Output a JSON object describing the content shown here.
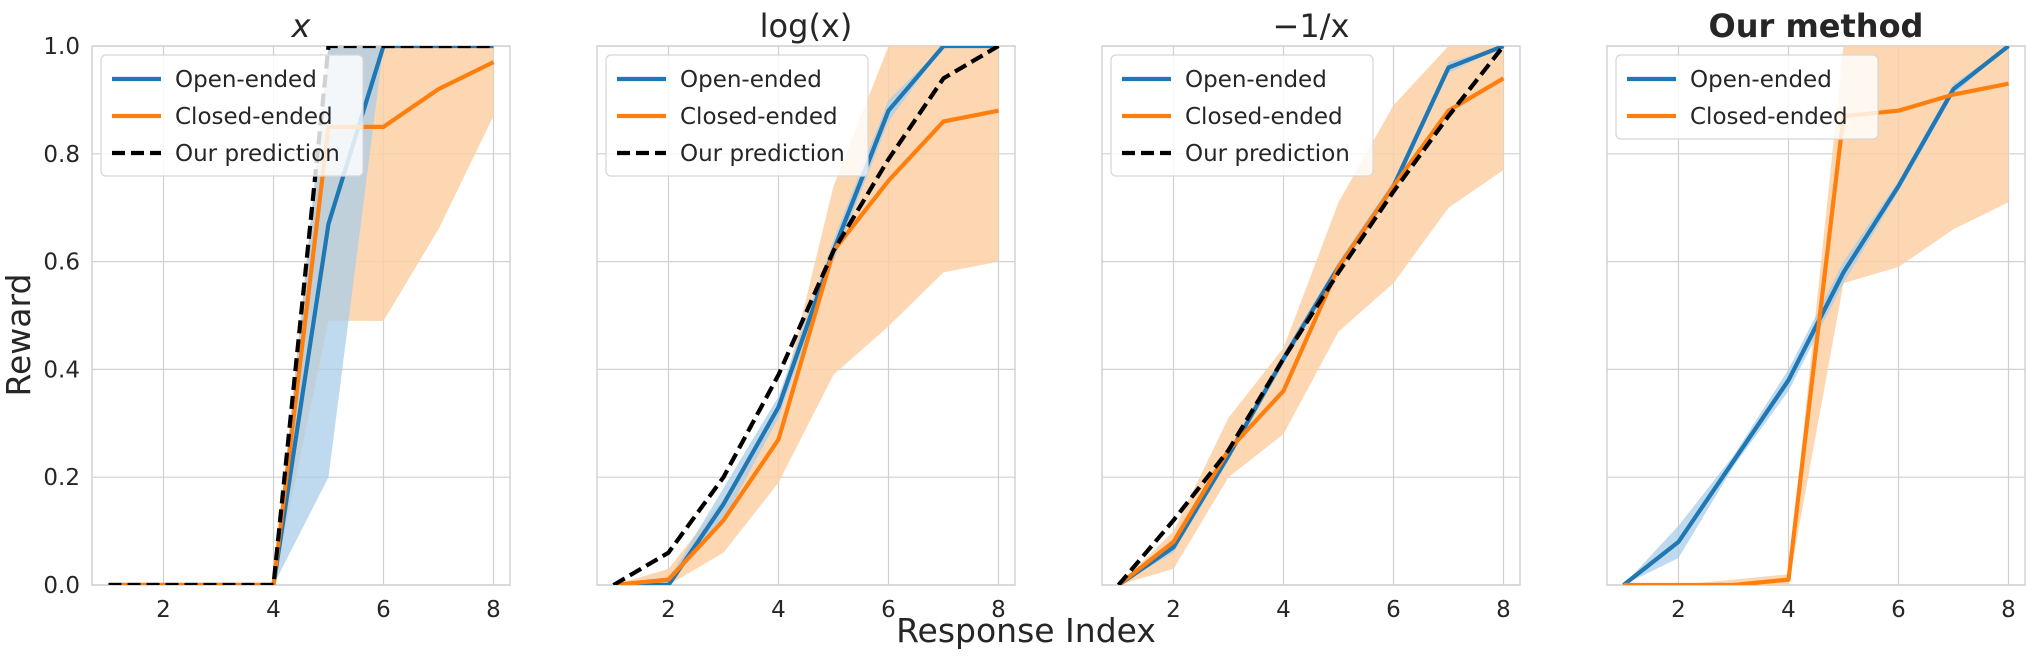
{
  "figure": {
    "ylabel": "Reward",
    "xlabel": "Response Index"
  },
  "colors": {
    "open": "#1f77b4",
    "closed": "#ff7f0e",
    "prediction": "#000000",
    "grid": "#d0d0d0",
    "open_band": "#aacde8",
    "closed_band": "#fdd0a5"
  },
  "chart_data": [
    {
      "type": "line",
      "title": "x",
      "title_style": "italic",
      "x": [
        1,
        2,
        3,
        4,
        5,
        6,
        7,
        8
      ],
      "xticks": [
        "2",
        "4",
        "6",
        "8"
      ],
      "yticks": [
        "0.0",
        "0.2",
        "0.4",
        "0.6",
        "0.8",
        "1.0"
      ],
      "xlim": [
        0.7,
        8.3
      ],
      "ylim": [
        0,
        1
      ],
      "grid": true,
      "legend": "top-left",
      "series": [
        {
          "name": "Open-ended",
          "values": [
            0,
            0,
            0,
            0,
            0.67,
            1.0,
            1.0,
            1.0
          ],
          "band_low": [
            0,
            0,
            0,
            0,
            0.2,
            1.0,
            1.0,
            1.0
          ],
          "band_high": [
            0,
            0,
            0,
            0,
            1.0,
            1.0,
            1.0,
            1.0
          ]
        },
        {
          "name": "Closed-ended",
          "values": [
            0,
            0,
            0,
            0,
            0.85,
            0.85,
            0.92,
            0.97
          ],
          "band_low": [
            0,
            0,
            0,
            0,
            0.49,
            0.49,
            0.66,
            0.87
          ],
          "band_high": [
            0,
            0,
            0,
            0,
            1.0,
            1.0,
            1.0,
            1.0
          ]
        },
        {
          "name": "Our prediction",
          "values": [
            0,
            0,
            0,
            0,
            1.0,
            1.0,
            1.0,
            1.0
          ],
          "style": "dashed"
        }
      ]
    },
    {
      "type": "line",
      "title": "log(x)",
      "title_style": "math",
      "x": [
        1,
        2,
        3,
        4,
        5,
        6,
        7,
        8
      ],
      "xticks": [
        "2",
        "4",
        "6",
        "8"
      ],
      "yticks": [],
      "xlim": [
        0.7,
        8.3
      ],
      "ylim": [
        0,
        1
      ],
      "grid": true,
      "legend": "top-left",
      "series": [
        {
          "name": "Open-ended",
          "values": [
            0,
            0,
            0.15,
            0.33,
            0.62,
            0.88,
            1.0,
            1.0
          ],
          "band_low": [
            0,
            0,
            0.12,
            0.31,
            0.6,
            0.86,
            1.0,
            1.0
          ],
          "band_high": [
            0,
            0.01,
            0.18,
            0.35,
            0.64,
            0.9,
            1.0,
            1.0
          ]
        },
        {
          "name": "Closed-ended",
          "values": [
            0,
            0.01,
            0.12,
            0.27,
            0.62,
            0.75,
            0.86,
            0.88
          ],
          "band_low": [
            0,
            0,
            0.06,
            0.19,
            0.39,
            0.48,
            0.58,
            0.6
          ],
          "band_high": [
            0,
            0.03,
            0.16,
            0.32,
            0.74,
            1.0,
            1.0,
            1.0
          ]
        },
        {
          "name": "Our prediction",
          "values": [
            0,
            0.06,
            0.2,
            0.39,
            0.62,
            0.79,
            0.94,
            1.0
          ],
          "style": "dashed"
        }
      ]
    },
    {
      "type": "line",
      "title": "−1/x",
      "title_style": "math",
      "x": [
        1,
        2,
        3,
        4,
        5,
        6,
        7,
        8
      ],
      "xticks": [
        "2",
        "4",
        "6",
        "8"
      ],
      "yticks": [],
      "xlim": [
        0.7,
        8.3
      ],
      "ylim": [
        0,
        1
      ],
      "grid": true,
      "legend": "top-left",
      "series": [
        {
          "name": "Open-ended",
          "values": [
            0,
            0.07,
            0.24,
            0.42,
            0.59,
            0.74,
            0.96,
            1.0
          ],
          "band_low": [
            0,
            0.06,
            0.23,
            0.41,
            0.58,
            0.73,
            0.95,
            1.0
          ],
          "band_high": [
            0,
            0.08,
            0.25,
            0.43,
            0.6,
            0.75,
            0.97,
            1.0
          ]
        },
        {
          "name": "Closed-ended",
          "values": [
            0,
            0.08,
            0.25,
            0.36,
            0.59,
            0.74,
            0.88,
            0.94
          ],
          "band_low": [
            0,
            0.03,
            0.2,
            0.28,
            0.47,
            0.56,
            0.7,
            0.77
          ],
          "band_high": [
            0,
            0.1,
            0.31,
            0.44,
            0.71,
            0.89,
            1.0,
            1.0
          ]
        },
        {
          "name": "Our prediction",
          "values": [
            0,
            0.12,
            0.25,
            0.42,
            0.58,
            0.73,
            0.87,
            1.0
          ],
          "style": "dashed"
        }
      ]
    },
    {
      "type": "line",
      "title": "Our method",
      "title_style": "bold",
      "x": [
        1,
        2,
        3,
        4,
        5,
        6,
        7,
        8
      ],
      "xticks": [
        "2",
        "4",
        "6",
        "8"
      ],
      "yticks": [],
      "xlim": [
        0.7,
        8.3
      ],
      "ylim": [
        0,
        1
      ],
      "grid": true,
      "legend": "top-left",
      "series": [
        {
          "name": "Open-ended",
          "values": [
            0,
            0.08,
            0.23,
            0.38,
            0.58,
            0.74,
            0.92,
            1.0
          ],
          "band_low": [
            0,
            0.05,
            0.22,
            0.36,
            0.56,
            0.73,
            0.91,
            1.0
          ],
          "band_high": [
            0,
            0.11,
            0.24,
            0.4,
            0.6,
            0.75,
            0.93,
            1.0
          ]
        },
        {
          "name": "Closed-ended",
          "values": [
            0,
            0,
            0,
            0.01,
            0.87,
            0.88,
            0.91,
            0.93
          ],
          "band_low": [
            0,
            0,
            0,
            0,
            0.56,
            0.59,
            0.66,
            0.71
          ],
          "band_high": [
            0,
            0,
            0.01,
            0.02,
            1.0,
            1.0,
            1.0,
            1.0
          ]
        }
      ]
    }
  ]
}
